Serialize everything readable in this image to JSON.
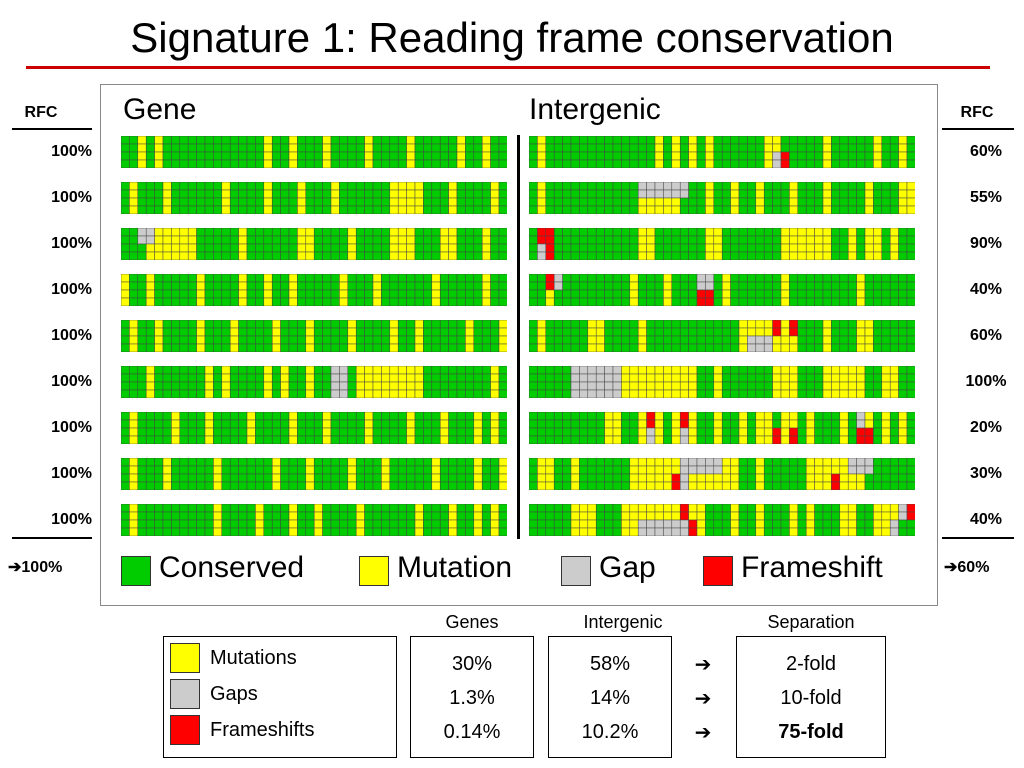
{
  "title": "Signature 1:  Reading frame conservation",
  "panel": {
    "gene_heading": "Gene",
    "intergenic_heading": "Intergenic"
  },
  "colors": {
    "conserved": "#00cc00",
    "mutation": "#ffff00",
    "gap": "#cccccc",
    "frameshift": "#ff0000",
    "title_rule": "#cc0000",
    "grid_line": "#444444"
  },
  "rfc": {
    "left_header": "RFC",
    "right_header": "RFC",
    "left_values": [
      "100%",
      "100%",
      "100%",
      "100%",
      "100%",
      "100%",
      "100%",
      "100%",
      "100%"
    ],
    "right_values": [
      "60%",
      "55%",
      "90%",
      "40%",
      "60%",
      "100%",
      "20%",
      "30%",
      "40%"
    ],
    "left_summary_arrow": "➔",
    "left_summary": "100%",
    "right_summary_arrow": "➔",
    "right_summary": "60%"
  },
  "legend": [
    {
      "label": "Conserved",
      "color": "#00cc00"
    },
    {
      "label": "Mutation",
      "color": "#ffff00"
    },
    {
      "label": "Gap",
      "color": "#cccccc"
    },
    {
      "label": "Frameshift",
      "color": "#ff0000"
    }
  ],
  "key": [
    {
      "label": "Mutations",
      "color": "#ffff00"
    },
    {
      "label": "Gaps",
      "color": "#cccccc"
    },
    {
      "label": "Frameshifts",
      "color": "#ff0000"
    }
  ],
  "stats": {
    "headers": {
      "genes": "Genes",
      "intergenic": "Intergenic",
      "separation": "Separation"
    },
    "genes": [
      "30%",
      "1.3%",
      "0.14%"
    ],
    "intergenic": [
      "58%",
      "14%",
      "10.2%"
    ],
    "arrows": [
      "➔",
      "➔",
      "➔"
    ],
    "separation": [
      "2-fold",
      "10-fold",
      "75-fold"
    ]
  },
  "alignment_rows": {
    "gene": [
      {
        "mutation_cols": [
          2,
          4,
          17,
          20,
          24,
          29,
          34,
          40,
          43
        ],
        "gap_cols": [],
        "frameshift_cols": []
      },
      {
        "mutation_cols": [
          1,
          5,
          12,
          17,
          21,
          25,
          32,
          33,
          34,
          35,
          39,
          44
        ],
        "gap_cols": [],
        "frameshift_cols": []
      },
      {
        "mutation_cols": [
          3,
          4,
          5,
          6,
          7,
          8,
          14,
          21,
          22,
          27,
          32,
          33,
          34,
          38,
          39,
          43
        ],
        "gap_cols": [
          [
            "top",
            2
          ],
          [
            "top",
            3
          ]
        ],
        "frameshift_cols": []
      },
      {
        "mutation_cols": [
          0,
          3,
          9,
          14,
          17,
          20,
          26,
          30,
          37,
          43
        ],
        "gap_cols": [],
        "frameshift_cols": []
      },
      {
        "mutation_cols": [
          1,
          4,
          9,
          13,
          18,
          22,
          27,
          32,
          35,
          41,
          45
        ],
        "gap_cols": [],
        "frameshift_cols": []
      },
      {
        "mutation_cols": [
          3,
          10,
          12,
          17,
          19,
          22,
          25,
          28,
          29,
          30,
          31,
          32,
          33,
          34,
          35,
          44
        ],
        "gap_cols": [
          [
            "full",
            25
          ],
          [
            "full",
            26
          ]
        ],
        "frameshift_cols": []
      },
      {
        "mutation_cols": [
          1,
          6,
          10,
          15,
          20,
          24,
          29,
          34,
          38,
          42,
          44
        ],
        "gap_cols": [],
        "frameshift_cols": []
      },
      {
        "mutation_cols": [
          1,
          5,
          11,
          18,
          22,
          27,
          31,
          37,
          42,
          45
        ],
        "gap_cols": [],
        "frameshift_cols": []
      },
      {
        "mutation_cols": [
          1,
          11,
          16,
          20,
          23,
          28,
          35,
          39,
          42,
          44
        ],
        "gap_cols": [],
        "frameshift_cols": []
      }
    ],
    "intergenic": [
      {
        "mutation_cols": [
          1,
          15,
          17,
          19,
          21,
          28,
          29,
          35,
          41,
          44
        ],
        "gap_cols": [
          [
            "bottom",
            29
          ]
        ],
        "frameshift_cols": [
          [
            "bottom",
            30
          ]
        ]
      },
      {
        "mutation_cols": [
          1,
          13,
          14,
          15,
          16,
          17,
          21,
          24,
          27,
          31,
          35,
          40,
          44,
          45
        ],
        "gap_cols": [
          [
            "top",
            13
          ],
          [
            "top",
            14
          ],
          [
            "top",
            15
          ],
          [
            "top",
            16
          ],
          [
            "top",
            17
          ],
          [
            "top",
            18
          ]
        ],
        "frameshift_cols": []
      },
      {
        "mutation_cols": [
          13,
          14,
          21,
          22,
          30,
          31,
          32,
          33,
          34,
          35,
          38,
          40,
          41,
          43
        ],
        "gap_cols": [
          [
            "bottom",
            1
          ]
        ],
        "frameshift_cols": [
          [
            "top",
            1
          ],
          [
            "top",
            2
          ],
          [
            "bottom",
            2
          ]
        ]
      },
      {
        "mutation_cols": [
          2,
          12,
          16,
          23,
          30,
          39
        ],
        "gap_cols": [
          [
            "top",
            3
          ],
          [
            "top",
            20
          ],
          [
            "top",
            21
          ]
        ],
        "frameshift_cols": [
          [
            "top",
            2
          ],
          [
            "bottom",
            20
          ],
          [
            "bottom",
            21
          ]
        ]
      },
      {
        "mutation_cols": [
          1,
          7,
          8,
          13,
          25,
          26,
          27,
          28,
          29,
          30,
          31,
          35,
          39,
          40
        ],
        "gap_cols": [
          [
            "bottom",
            26
          ],
          [
            "bottom",
            27
          ],
          [
            "bottom",
            28
          ],
          [
            "top",
            31
          ]
        ],
        "frameshift_cols": [
          [
            "top",
            29
          ],
          [
            "top",
            31
          ]
        ]
      },
      {
        "mutation_cols": [
          9,
          10,
          11,
          12,
          13,
          14,
          15,
          16,
          17,
          18,
          19,
          22,
          29,
          30,
          31,
          35,
          36,
          37,
          38,
          39,
          42,
          43
        ],
        "gap_cols": [
          [
            "full",
            5
          ],
          [
            "full",
            6
          ],
          [
            "full",
            7
          ],
          [
            "full",
            8
          ],
          [
            "full",
            9
          ],
          [
            "full",
            10
          ]
        ],
        "frameshift_cols": []
      },
      {
        "mutation_cols": [
          9,
          10,
          13,
          15,
          17,
          18,
          19,
          22,
          25,
          27,
          28,
          30,
          31,
          33,
          37,
          40,
          42,
          44
        ],
        "gap_cols": [
          [
            "bottom",
            14
          ],
          [
            "bottom",
            18
          ],
          [
            "bottom",
            31
          ],
          [
            "top",
            39
          ]
        ],
        "frameshift_cols": [
          [
            "top",
            14
          ],
          [
            "top",
            18
          ],
          [
            "bottom",
            29
          ],
          [
            "bottom",
            31
          ],
          [
            "bottom",
            39
          ],
          [
            "bottom",
            40
          ]
        ]
      },
      {
        "mutation_cols": [
          1,
          2,
          5,
          12,
          13,
          14,
          15,
          16,
          17,
          18,
          19,
          20,
          21,
          22,
          23,
          24,
          27,
          33,
          34,
          35,
          36,
          37,
          38,
          39
        ],
        "gap_cols": [
          [
            "top",
            18
          ],
          [
            "top",
            19
          ],
          [
            "top",
            20
          ],
          [
            "top",
            21
          ],
          [
            "top",
            22
          ],
          [
            "bottom",
            18
          ],
          [
            "top",
            38
          ],
          [
            "top",
            39
          ],
          [
            "top",
            40
          ]
        ],
        "frameshift_cols": [
          [
            "bottom",
            17
          ],
          [
            "bottom",
            36
          ]
        ]
      },
      {
        "mutation_cols": [
          5,
          6,
          7,
          11,
          12,
          13,
          14,
          15,
          16,
          17,
          18,
          19,
          20,
          24,
          27,
          31,
          33,
          37,
          38,
          41,
          42,
          43
        ],
        "gap_cols": [
          [
            "bottom",
            13
          ],
          [
            "bottom",
            14
          ],
          [
            "bottom",
            15
          ],
          [
            "bottom",
            16
          ],
          [
            "bottom",
            17
          ],
          [
            "bottom",
            18
          ],
          [
            "bottom",
            43
          ],
          [
            "top",
            44
          ]
        ],
        "frameshift_cols": [
          [
            "top",
            18
          ],
          [
            "bottom",
            19
          ],
          [
            "top",
            45
          ]
        ]
      }
    ]
  }
}
